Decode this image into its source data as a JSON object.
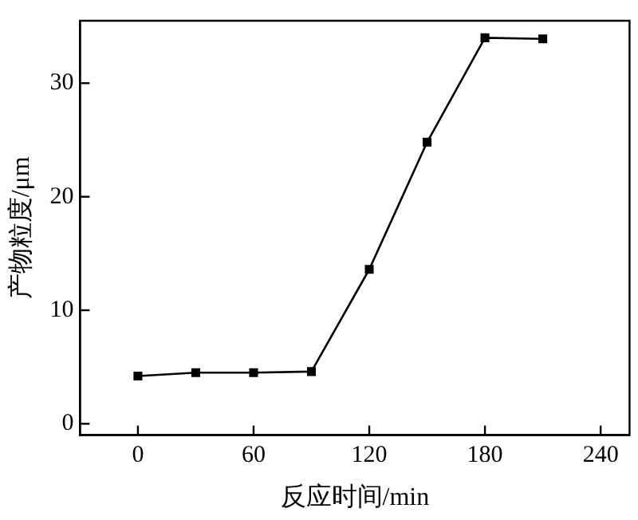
{
  "chart_data": {
    "type": "line",
    "xlabel": "反应时间/min",
    "ylabel": "产物粒度/μm",
    "x": [
      0,
      30,
      60,
      90,
      120,
      150,
      180,
      210
    ],
    "values": [
      4.2,
      4.5,
      4.5,
      4.6,
      13.6,
      24.8,
      34.0,
      33.9
    ],
    "color": "#000000",
    "marker": "square",
    "line_style": "solid",
    "xlim": [
      -30,
      255
    ],
    "xticks": [
      0,
      60,
      120,
      180,
      240
    ],
    "ylim": [
      -1,
      35.5
    ],
    "yticks": [
      0,
      10,
      20,
      30
    ],
    "grid": false,
    "legend": false
  }
}
